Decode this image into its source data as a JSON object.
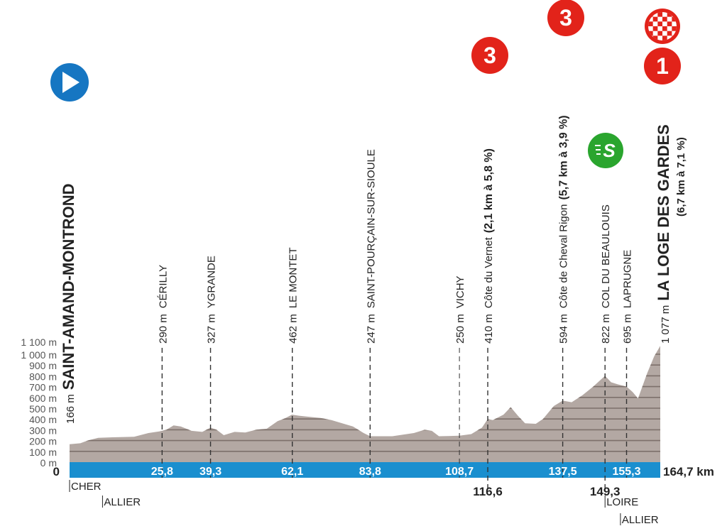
{
  "chart_data": {
    "type": "area",
    "xlabel_unit": "km",
    "ylim": [
      0,
      1100
    ],
    "xlim": [
      0,
      164.7
    ],
    "grid": true,
    "yticks": [
      "0 m",
      "100 m",
      "200 m",
      "300 m",
      "400 m",
      "500 m",
      "600 m",
      "700 m",
      "800 m",
      "900 m",
      "1 000 m",
      "1 100 m"
    ],
    "colors": {
      "profile": "#b3a8a3",
      "gridline": "#7d706b",
      "km_bar": "#1a8fcf",
      "climb_badge": "#e2231a",
      "sprint_badge": "#2aa52e",
      "start_badge": "#1676c2"
    },
    "profile": {
      "x": [
        0,
        3,
        5,
        8,
        12,
        18,
        22,
        25,
        27,
        29,
        31,
        34,
        37,
        39.3,
        41,
        43,
        46,
        49,
        52,
        55,
        58,
        60,
        62,
        64,
        67,
        70,
        73,
        76,
        79,
        82,
        83.8,
        90,
        96,
        99,
        101,
        103,
        108.7,
        112,
        115,
        116.6,
        118,
        121,
        123,
        125,
        127,
        130,
        132,
        135,
        137.5,
        140,
        143,
        146,
        149.3,
        151,
        153,
        155.3,
        157,
        158.5,
        161,
        163,
        164.7
      ],
      "y": [
        166,
        175,
        200,
        225,
        230,
        235,
        270,
        285,
        300,
        340,
        330,
        290,
        280,
        320,
        300,
        250,
        280,
        275,
        300,
        310,
        380,
        405,
        440,
        430,
        420,
        410,
        390,
        360,
        330,
        270,
        240,
        240,
        270,
        300,
        290,
        240,
        245,
        260,
        320,
        400,
        390,
        440,
        510,
        430,
        360,
        355,
        400,
        520,
        570,
        555,
        620,
        700,
        800,
        740,
        720,
        700,
        650,
        590,
        820,
        980,
        1077
      ]
    },
    "start": {
      "km_label": "0",
      "altitude": "166 m",
      "name": "SAINT-AMAND-MONTROND"
    },
    "finish": {
      "km_label": "164,7 km",
      "altitude": "1 077 m",
      "name": "LA LOGE DES GARDES",
      "climb": "(6,7 km à 7,1 %)",
      "category": "1"
    },
    "waypoints": [
      {
        "km": 25.8,
        "km_label": "25,8",
        "altitude": "290 m",
        "name": "CÉRILLY",
        "below": false
      },
      {
        "km": 39.3,
        "km_label": "39,3",
        "altitude": "327 m",
        "name": "YGRANDE",
        "below": false
      },
      {
        "km": 62.1,
        "km_label": "62,1",
        "altitude": "462 m",
        "name": "LE MONTET",
        "below": false
      },
      {
        "km": 83.8,
        "km_label": "83,8",
        "altitude": "247 m",
        "name": "SAINT-POURÇAIN-SUR-SIOULE",
        "below": false
      },
      {
        "km": 108.7,
        "km_label": "108,7",
        "altitude": "250 m",
        "name": "VICHY",
        "below": false,
        "light": true
      },
      {
        "km": 116.6,
        "km_label": "116,6",
        "altitude": "410 m",
        "name": "Côte du Vernet",
        "climb": "(2,1 km à 5,8 %)",
        "category": "3",
        "below": true
      },
      {
        "km": 137.5,
        "km_label": "137,5",
        "altitude": "594 m",
        "name": "Côte de Cheval Rigon",
        "climb": "(5,7 km à 3,9 %)",
        "category": "3",
        "below": false
      },
      {
        "km": 149.3,
        "km_label": "149,3",
        "altitude": "822 m",
        "name": "COL DU BEAULOUIS",
        "sprint": "S",
        "below": true
      },
      {
        "km": 155.3,
        "km_label": "155,3",
        "altitude": "695 m",
        "name": "LAPRUGNE",
        "below": false
      }
    ],
    "departments": [
      {
        "name": "CHER",
        "km": 0
      },
      {
        "name": "ALLIER",
        "km": 8
      },
      {
        "name": "LOIRE",
        "km": 149.3
      },
      {
        "name": "ALLIER",
        "km": 153.6
      }
    ],
    "icons": {
      "start": "play-icon",
      "finish": "checkered-flag-icon",
      "sprint": "sprint-icon"
    }
  }
}
